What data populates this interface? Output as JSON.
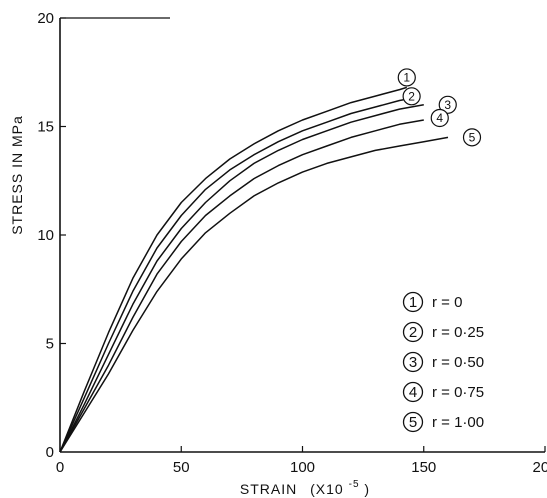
{
  "chart_data": {
    "type": "line",
    "title": "",
    "xlabel": "STRAIN",
    "xlabel_unit": "(X10",
    "xlabel_exp": "-5",
    "xlabel_close": ")",
    "ylabel": "STRESS IN MPa",
    "xlim": [
      0,
      200
    ],
    "ylim": [
      0,
      20
    ],
    "xticks": [
      "0",
      "50",
      "100",
      "150",
      "200"
    ],
    "yticks": [
      "0",
      "5",
      "10",
      "15",
      "20"
    ],
    "grid": false,
    "legend_position": "bottom-right",
    "series": [
      {
        "marker": "1",
        "name": "r = 0",
        "x": [
          0,
          10,
          20,
          30,
          40,
          50,
          60,
          70,
          80,
          90,
          100,
          110,
          120,
          130,
          140,
          143
        ],
        "y": [
          0,
          2.8,
          5.5,
          8.0,
          10.0,
          11.5,
          12.6,
          13.5,
          14.2,
          14.8,
          15.3,
          15.7,
          16.1,
          16.4,
          16.7,
          16.8
        ]
      },
      {
        "marker": "2",
        "name": "r = 0·25",
        "x": [
          0,
          10,
          20,
          30,
          40,
          50,
          60,
          70,
          80,
          90,
          100,
          110,
          120,
          130,
          140,
          145
        ],
        "y": [
          0,
          2.5,
          5.0,
          7.4,
          9.4,
          10.9,
          12.1,
          13.0,
          13.7,
          14.3,
          14.8,
          15.2,
          15.6,
          15.9,
          16.2,
          16.3
        ]
      },
      {
        "marker": "3",
        "name": "r = 0·50",
        "x": [
          0,
          10,
          20,
          30,
          40,
          50,
          60,
          70,
          80,
          90,
          100,
          110,
          120,
          130,
          140,
          150
        ],
        "y": [
          0,
          2.2,
          4.5,
          6.8,
          8.8,
          10.3,
          11.5,
          12.5,
          13.3,
          13.9,
          14.4,
          14.8,
          15.2,
          15.5,
          15.8,
          16.0
        ]
      },
      {
        "marker": "4",
        "name": "r = 0·75",
        "x": [
          0,
          10,
          20,
          30,
          40,
          50,
          60,
          70,
          80,
          90,
          100,
          110,
          120,
          130,
          140,
          150
        ],
        "y": [
          0,
          2.0,
          4.0,
          6.2,
          8.2,
          9.7,
          10.9,
          11.8,
          12.6,
          13.2,
          13.7,
          14.1,
          14.5,
          14.8,
          15.1,
          15.3
        ]
      },
      {
        "marker": "5",
        "name": "r = 1·00",
        "x": [
          0,
          10,
          20,
          30,
          40,
          50,
          60,
          70,
          80,
          90,
          100,
          110,
          120,
          130,
          140,
          150,
          160
        ],
        "y": [
          0,
          1.8,
          3.6,
          5.6,
          7.4,
          8.9,
          10.1,
          11.0,
          11.8,
          12.4,
          12.9,
          13.3,
          13.6,
          13.9,
          14.1,
          14.3,
          14.5
        ]
      }
    ]
  },
  "legend": {
    "items": [
      {
        "marker": "1",
        "text": "r = 0"
      },
      {
        "marker": "2",
        "text": "r = 0·25"
      },
      {
        "marker": "3",
        "text": "r = 0·50"
      },
      {
        "marker": "4",
        "text": "r = 0·75"
      },
      {
        "marker": "5",
        "text": "r = 1·00"
      }
    ]
  },
  "colors": {
    "line": "#111111",
    "background": "#ffffff"
  }
}
